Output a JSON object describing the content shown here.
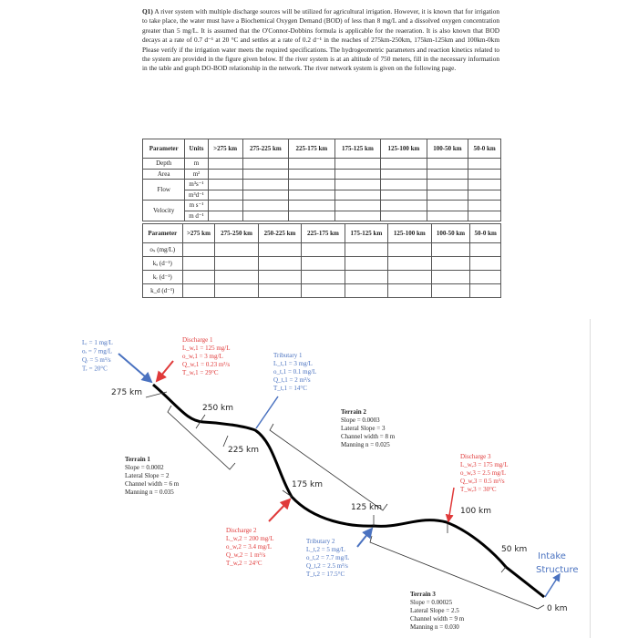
{
  "question": {
    "label": "Q1)",
    "text": "A river system with multiple discharge sources will be utilized for agricultural irrigation. However, it is known that for irrigation to take place, the water must have a Biochemical Oxygen Demand (BOD) of less than 8 mg/L and a dissolved oxygen concentration greater than 5 mg/L. It is assumed that the O'Connor-Dobbins formula is applicable for the reaeration. It is also known that BOD decays at a rate of 0.7 d⁻¹ at 20 °C and settles at a rate of 0.2 d⁻¹ in the reaches of 275km-250km, 175km-125km and 100km-0km Please verify if the irrigation water meets the required specifications. The hydrogeometric parameters and reaction kinetics related to the system are provided in the figure given below. If the river system is at an altitude of 750 meters, fill in the necessary information in the table and graph DO-BOD relationship in the network. The river network system is given on the following page."
  },
  "table1": {
    "headers": [
      "Parameter",
      "Units",
      ">275 km",
      "275-225 km",
      "225-175 km",
      "175-125 km",
      "125-100 km",
      "100-50 km",
      "50-0 km"
    ],
    "rows": [
      [
        "Depth",
        "m"
      ],
      [
        "Area",
        "m²"
      ],
      [
        "Flow",
        "m³s⁻¹"
      ],
      [
        "",
        "m³d⁻¹"
      ],
      [
        "Velocity",
        "m s⁻¹"
      ],
      [
        "",
        "m d⁻¹"
      ]
    ]
  },
  "table2": {
    "headers": [
      "Parameter",
      ">275 km",
      "275-250 km",
      "250-225 km",
      "225-175 km",
      "175-125 km",
      "125-100 km",
      "100-50 km",
      "50-0 km"
    ],
    "rows": [
      "oₛ (mg/L)",
      "kₐ (d⁻¹)",
      "kᵣ (d⁻¹)",
      "k_d (d⁻¹)"
    ]
  },
  "diagram": {
    "upstream": [
      "Lᵣ = 1 mg/L",
      "oᵣ = 7 mg/L",
      "Qᵣ = 5 m³/s",
      "Tᵣ = 20°C"
    ],
    "discharge1": [
      "Discharge 1",
      "L_w,1 = 125 mg/L",
      "o_w,1 = 3 mg/L",
      "Q_w,1 = 0.23 m³/s",
      "T_w,1 = 29°C"
    ],
    "tributary1": [
      "Tributary 1",
      "L_t,1 = 3 mg/L",
      "o_t,1 = 0.1 mg/L",
      "Q_t,1 = 2 m³/s",
      "T_t,1 = 14°C"
    ],
    "terrain1": [
      "Terrain 1",
      "Slope = 0.0002",
      "Lateral Slope = 2",
      "Channel width = 6 m",
      "Manning n = 0.035"
    ],
    "terrain2": [
      "Terrain 2",
      "Slope = 0.0003",
      "Lateral Slope = 3",
      "Channel width = 8 m",
      "Manning n = 0.025"
    ],
    "terrain3": [
      "Terrain 3",
      "Slope = 0.00025",
      "Lateral Slope = 2.5",
      "Channel width = 9 m",
      "Manning n = 0.030"
    ],
    "discharge2": [
      "Discharge 2",
      "L_w,2 = 200 mg/L",
      "o_w,2 = 3.4 mg/L",
      "Q_w,2 = 1 m³/s",
      "T_w,2 = 24°C"
    ],
    "tributary2": [
      "Tributary 2",
      "L_t,2 = 5 mg/L",
      "o_t,2 = 7.7 mg/L",
      "Q_t,2 = 2.5 m³/s",
      "T_t,2 = 17.5°C"
    ],
    "discharge3": [
      "Discharge 3",
      "L_w,3 = 175 mg/L",
      "o_w,3 = 2.5 mg/L",
      "Q_w,3 = 0.5 m³/s",
      "T_w,3 = 30°C"
    ],
    "km": [
      "275 km",
      "250 km",
      "225 km",
      "175 km",
      "125 km",
      "100 km",
      "50 km",
      "0 km"
    ],
    "intake": [
      "Intake",
      "Structure"
    ],
    "colors": {
      "blue": "#4a72c0",
      "red": "#e03a3a",
      "river": "#000000"
    }
  }
}
